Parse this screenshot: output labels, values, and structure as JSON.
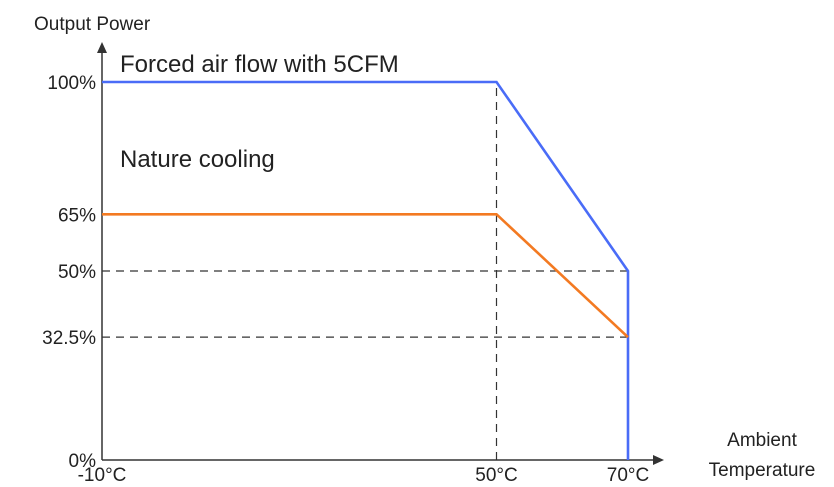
{
  "chart_data": {
    "type": "line",
    "title": "",
    "ylabel": "Output Power",
    "xlabel_lines": [
      "Ambient",
      "Temperature"
    ],
    "x_tick_labels": [
      "-10°C",
      "50°C",
      "70°C"
    ],
    "y_tick_labels": [
      "0%",
      "32.5%",
      "50%",
      "65%",
      "100%"
    ],
    "x_ticks": [
      -10,
      50,
      70
    ],
    "y_ticks": [
      0,
      32.5,
      50,
      65,
      100
    ],
    "xlim": [
      -10,
      70
    ],
    "ylim": [
      0,
      100
    ],
    "grid": false,
    "series": [
      {
        "name": "Forced air flow with 5CFM",
        "color": "#4a6cf7",
        "x": [
          -10,
          50,
          70,
          70
        ],
        "y": [
          100,
          100,
          50,
          0
        ]
      },
      {
        "name": "Nature cooling",
        "color": "#f37a22",
        "x": [
          -10,
          50,
          70
        ],
        "y": [
          65,
          65,
          32.5
        ]
      }
    ],
    "reference_lines": [
      {
        "from": [
          50,
          0
        ],
        "to": [
          50,
          100
        ]
      },
      {
        "from": [
          -10,
          50
        ],
        "to": [
          70,
          50
        ]
      },
      {
        "from": [
          -10,
          32.5
        ],
        "to": [
          70,
          32.5
        ]
      }
    ]
  }
}
